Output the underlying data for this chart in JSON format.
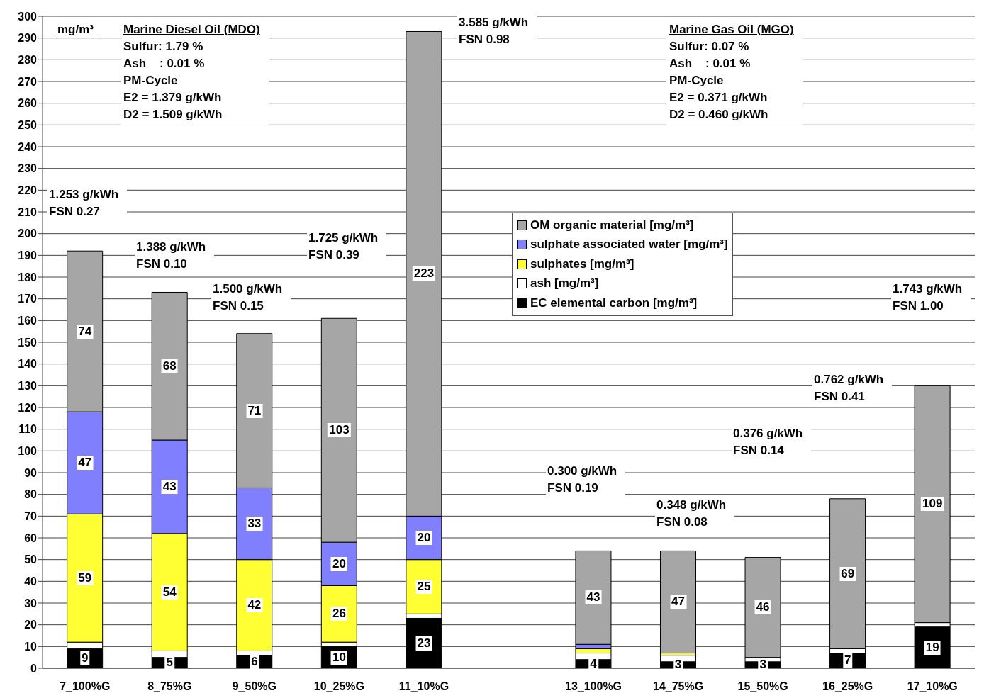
{
  "chart_data": {
    "type": "bar",
    "stacked": true,
    "ylabel": "mg/m³",
    "categories": [
      "7_100%G",
      "8_75%G",
      "9_50%G",
      "10_25%G",
      "11_10%G",
      null,
      "13_100%G",
      "14_75%G",
      "15_50%G",
      "16_25%G",
      "17_10%G"
    ],
    "series": [
      {
        "name": "EC elemental carbon [mg/m³]",
        "color": "#000000",
        "values": [
          9,
          5,
          6,
          10,
          23,
          null,
          4,
          3,
          3,
          7,
          19
        ],
        "value_labels": [
          "9",
          "5",
          "6",
          "10",
          "23",
          null,
          "4",
          "3",
          "3",
          "7",
          "19"
        ]
      },
      {
        "name": "ash [mg/m³]",
        "color": "#ffffff",
        "values": [
          3,
          3,
          2,
          2,
          2,
          null,
          3,
          3,
          2,
          2,
          2
        ]
      },
      {
        "name": "sulphates [mg/m³]",
        "color": "#ffff33",
        "values": [
          59,
          54,
          42,
          26,
          25,
          null,
          2,
          1,
          0,
          0,
          0
        ],
        "value_labels": [
          "59",
          "54",
          "42",
          "26",
          "25",
          null,
          null,
          null,
          null,
          null,
          null
        ]
      },
      {
        "name": "sulphate associated water [mg/m³]",
        "color": "#8080ff",
        "values": [
          47,
          43,
          33,
          20,
          20,
          null,
          2,
          0,
          0,
          0,
          0
        ],
        "value_labels": [
          "47",
          "43",
          "33",
          "20",
          "20",
          null,
          null,
          null,
          null,
          null,
          null
        ]
      },
      {
        "name": "OM organic material [mg/m³]",
        "color": "#a6a6a6",
        "values": [
          74,
          68,
          71,
          103,
          223,
          null,
          43,
          47,
          46,
          69,
          109
        ],
        "value_labels": [
          "74",
          "68",
          "71",
          "103",
          "223",
          null,
          "43",
          "47",
          "46",
          "69",
          "109"
        ]
      }
    ],
    "ylim": [
      0,
      300
    ],
    "yticks": [
      0,
      10,
      20,
      30,
      40,
      50,
      60,
      70,
      80,
      90,
      100,
      110,
      120,
      130,
      140,
      150,
      160,
      170,
      180,
      190,
      200,
      210,
      220,
      230,
      240,
      250,
      260,
      270,
      280,
      290,
      300
    ],
    "grid": "y",
    "legend": "top",
    "annotations": [
      "Marine Diesel Oil (MDO)\nSulfur: 1.79 %\nAsh    : 0.01 %\nPM-Cycle\nE2 = 1.379 g/kWh\nD2 = 1.509 g/kWh",
      "Marine Gas Oil (MGO)\nSulfur: 0.07 %\nAsh    : 0.01 %\nPM-Cycle\nE2 = 0.371 g/kWh\nD2 = 0.460 g/kWh",
      "1.253 g/kWh\nFSN 0.27",
      "1.388 g/kWh\nFSN 0.10",
      "1.500 g/kWh\nFSN 0.15",
      "1.725 g/kWh\nFSN 0.39",
      "3.585 g/kWh\nFSN 0.98",
      "0.300 g/kWh\nFSN 0.19",
      "0.348 g/kWh\nFSN 0.08",
      "0.376 g/kWh\nFSN 0.14",
      "0.762 g/kWh\nFSN 0.41",
      "1.743 g/kWh\nFSN 1.00"
    ]
  }
}
